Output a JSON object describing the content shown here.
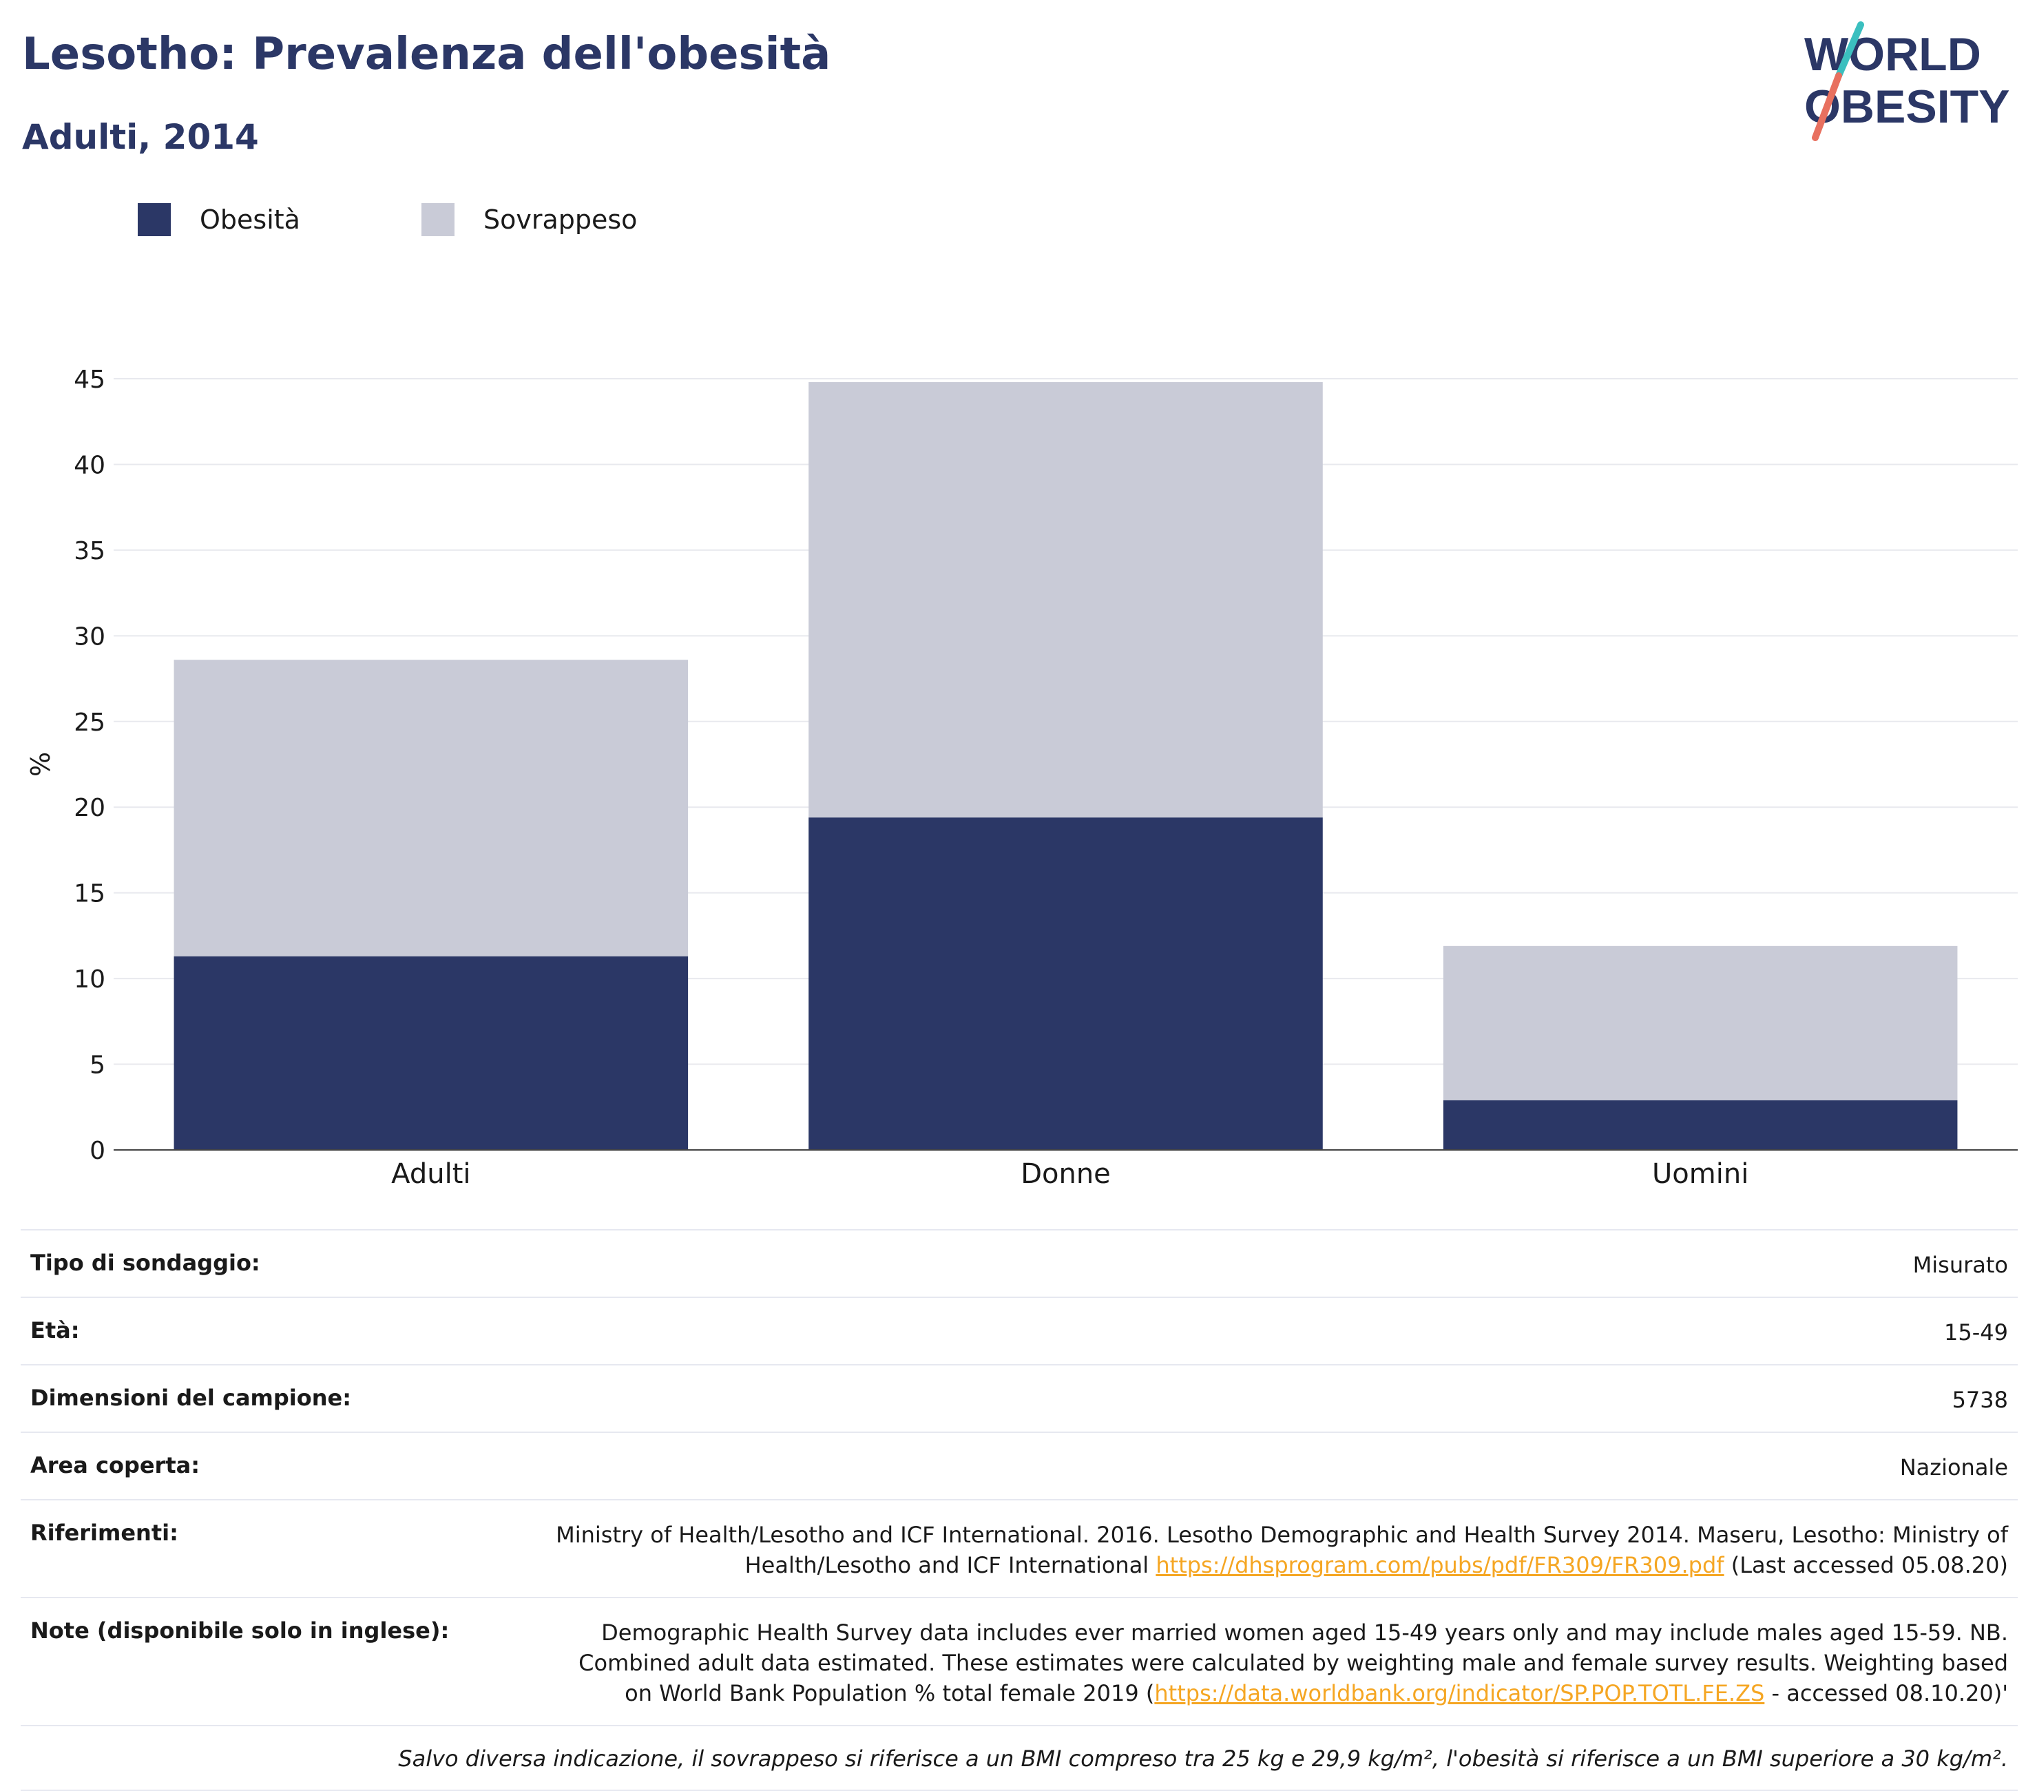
{
  "header": {
    "title": "Lesotho: Prevalenza dell'obesità",
    "subtitle": "Adulti, 2014"
  },
  "logo": {
    "line1": "WORLD",
    "line2": "OBESITY",
    "colors": {
      "text": "#2b3766",
      "slash_top": "#3bbfbf",
      "slash_bottom": "#e8705f"
    }
  },
  "legend": [
    {
      "label": "Obesità",
      "color": "#2b3766"
    },
    {
      "label": "Sovrappeso",
      "color": "#c9cbd7"
    }
  ],
  "chart_data": {
    "type": "bar",
    "stacked": true,
    "categories": [
      "Adulti",
      "Donne",
      "Uomini"
    ],
    "series": [
      {
        "name": "Obesità",
        "color": "#2b3766",
        "values": [
          11.3,
          19.4,
          2.9
        ]
      },
      {
        "name": "Sovrappeso",
        "color": "#c9cbd7",
        "values": [
          17.3,
          25.4,
          9.0
        ]
      }
    ],
    "ylabel": "%",
    "xlabel": "",
    "ylim": [
      0,
      45
    ],
    "yticks": [
      0,
      5,
      10,
      15,
      20,
      25,
      30,
      35,
      40,
      45
    ],
    "grid": true,
    "legend_position": "top-left"
  },
  "info": {
    "rows": [
      {
        "label": "Tipo di sondaggio:",
        "value": "Misurato"
      },
      {
        "label": "Età:",
        "value": "15-49"
      },
      {
        "label": "Dimensioni del campione:",
        "value": "5738"
      },
      {
        "label": "Area coperta:",
        "value": "Nazionale"
      }
    ],
    "references": {
      "label": "Riferimenti:",
      "text_before": "Ministry of Health/Lesotho and ICF International. 2016. Lesotho Demographic and Health Survey 2014. Maseru, Lesotho: Ministry of Health/Lesotho and ICF International ",
      "link": "https://dhsprogram.com/pubs/pdf/FR309/FR309.pdf",
      "text_after": " (Last accessed 05.08.20)"
    },
    "notes": {
      "label": "Note (disponibile solo in inglese):",
      "text_before": "Demographic Health Survey data includes ever married women aged 15-49 years only and may include males aged 15-59. NB. Combined adult data estimated. These estimates were calculated by weighting male and female survey results. Weighting based on World Bank Population % total female 2019 (",
      "link": "https://data.worldbank.org/indicator/SP.POP.TOTL.FE.ZS",
      "text_after": " - accessed 08.10.20)'"
    },
    "footnote": "Salvo diversa indicazione, il sovrappeso si riferisce a un BMI compreso tra 25 kg e 29,9 kg/m², l'obesità si riferisce a un BMI superiore a 30 kg/m²."
  }
}
